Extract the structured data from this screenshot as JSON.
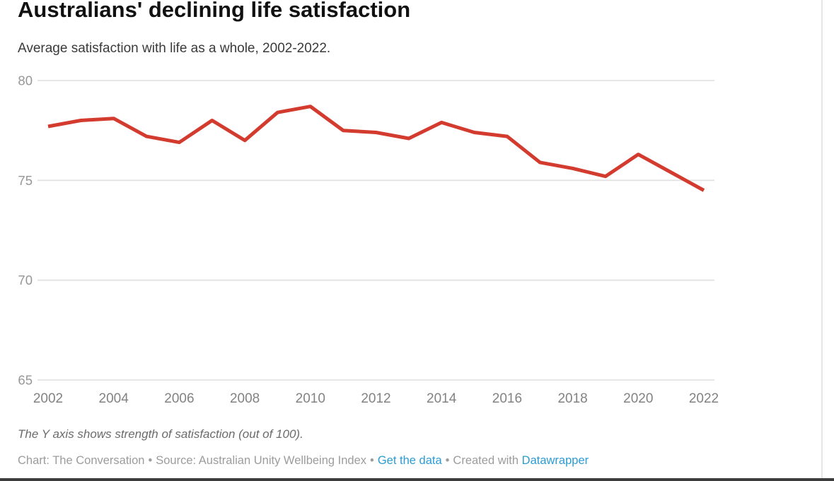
{
  "header": {
    "title": "Australians' declining life satisfaction",
    "subtitle": "Average satisfaction with life as a whole, 2002-2022."
  },
  "chart_data": {
    "type": "line",
    "title": "Australians' declining life satisfaction",
    "subtitle": "Average satisfaction with life as a whole, 2002-2022.",
    "x": [
      2002,
      2003,
      2004,
      2005,
      2006,
      2007,
      2008,
      2009,
      2010,
      2011,
      2012,
      2013,
      2014,
      2015,
      2016,
      2017,
      2018,
      2019,
      2020,
      2021,
      2022
    ],
    "series": [
      {
        "name": "Average satisfaction with life as a whole",
        "color": "#d23b2e",
        "values": [
          77.7,
          78.0,
          78.1,
          77.2,
          76.9,
          78.0,
          77.0,
          78.4,
          78.7,
          77.5,
          77.4,
          77.1,
          77.9,
          77.4,
          77.2,
          75.9,
          75.6,
          75.2,
          76.3,
          75.4,
          74.5
        ]
      }
    ],
    "xlim": [
      2002,
      2022
    ],
    "ylim": [
      65,
      80
    ],
    "y_ticks": [
      80,
      75,
      70,
      65
    ],
    "x_ticks": [
      2002,
      2004,
      2006,
      2008,
      2010,
      2012,
      2014,
      2016,
      2018,
      2020,
      2022
    ],
    "grid": "horizontal",
    "legend": "none",
    "ylabel": "",
    "xlabel": ""
  },
  "footer": {
    "footnote": "The Y axis shows strength of satisfaction (out of 100).",
    "credit_chart": "Chart: The Conversation",
    "credit_source": "Source: Australian Unity Wellbeing Index",
    "separator": "•",
    "link_get_data": "Get the data",
    "created_with": "Created with",
    "link_datawrapper": "Datawrapper"
  },
  "colors": {
    "line": "#d23b2e",
    "grid": "#e2e2e2",
    "y_tick_label": "#979797",
    "x_tick_label": "#828282",
    "link": "#2d9bd3"
  }
}
